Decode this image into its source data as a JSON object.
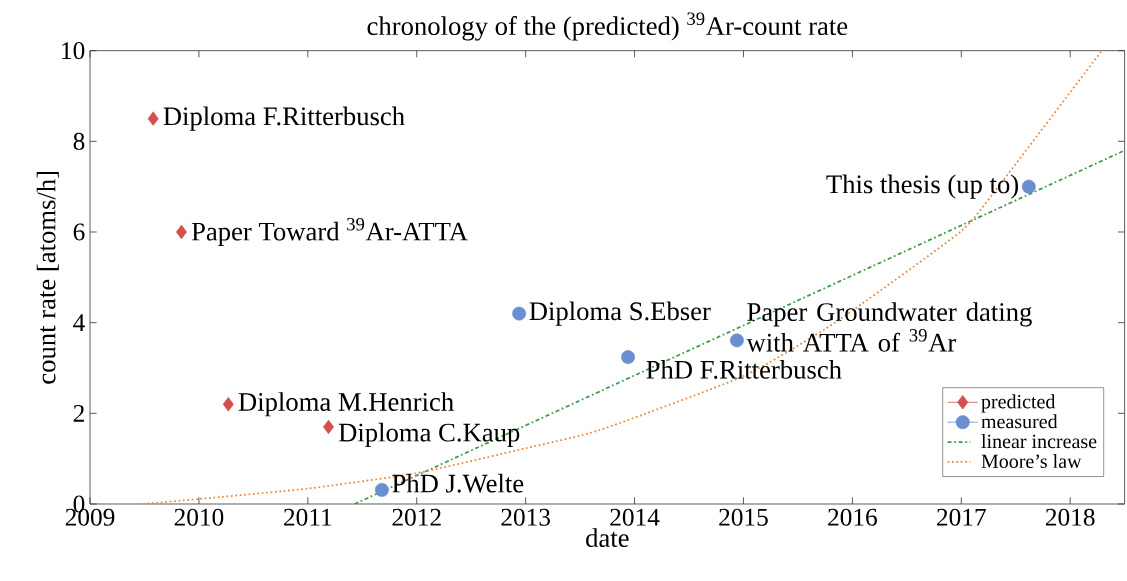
{
  "chart_data": {
    "type": "scatter",
    "title": "chronology of the (predicted) $^{39}$Ar-count rate",
    "xlabel": "date",
    "ylabel": "count rate [atoms/h]",
    "xlim": [
      2009,
      2018.5
    ],
    "ylim": [
      0,
      10
    ],
    "xticks": [
      2009,
      2010,
      2011,
      2012,
      2013,
      2014,
      2015,
      2016,
      2017,
      2018
    ],
    "yticks": [
      0,
      2,
      4,
      6,
      8,
      10
    ],
    "grid": false,
    "legend": "bottom right",
    "series": [
      {
        "name": "predicted",
        "marker": "diamond",
        "color": "#d64f4f",
        "x": [
          2009.58,
          2009.84,
          2010.27,
          2011.19
        ],
        "values": [
          8.5,
          6.0,
          2.2,
          1.7
        ]
      },
      {
        "name": "measured",
        "marker": "circle",
        "color": "#6a8fd0",
        "x": [
          2011.68,
          2012.94,
          2013.94,
          2014.94,
          2017.62
        ],
        "values": [
          0.31,
          4.2,
          3.24,
          3.61,
          7.0
        ]
      },
      {
        "name": "linear increase",
        "type": "line",
        "marker": "none",
        "line_style": "dashdot",
        "color": "#3a9a45",
        "x": [
          2011.43,
          2018.5
        ],
        "values": [
          0,
          7.8
        ]
      },
      {
        "name": "Moore’s law",
        "type": "line",
        "marker": "none",
        "line_style": "dotted",
        "color": "#ec8438",
        "x": [
          2009.49,
          2010,
          2011,
          2012,
          2013,
          2013.68,
          2015,
          2015.84,
          2016.99,
          2017.34,
          2018.29
        ],
        "values": [
          0,
          0.11,
          0.34,
          0.68,
          1.23,
          1.63,
          2.82,
          4,
          6,
          7,
          10
        ]
      }
    ],
    "annotations": [
      {
        "text": "Diploma F.Ritterbusch",
        "x": 2009.58,
        "y": 8.5
      },
      {
        "text": "Paper Toward $^{39}$Ar-ATTA",
        "x": 2009.84,
        "y": 6.0
      },
      {
        "text": "Diploma M.Henrich",
        "x": 2010.27,
        "y": 2.2
      },
      {
        "text": "Diploma C.Kaup",
        "x": 2011.19,
        "y": 1.7
      },
      {
        "text": "PhD J.Welte",
        "x": 2011.68,
        "y": 0.31
      },
      {
        "text": "Diploma S.Ebser",
        "x": 2012.94,
        "y": 4.2
      },
      {
        "text": "PhD F.Ritterbusch",
        "x": 2013.94,
        "y": 3.24
      },
      {
        "text": "Paper Groundwater dating with ATTA of $^{39}$Ar",
        "x": 2014.94,
        "y": 3.61
      },
      {
        "text": "This thesis (up to)",
        "x": 2017.62,
        "y": 7.0
      }
    ]
  }
}
